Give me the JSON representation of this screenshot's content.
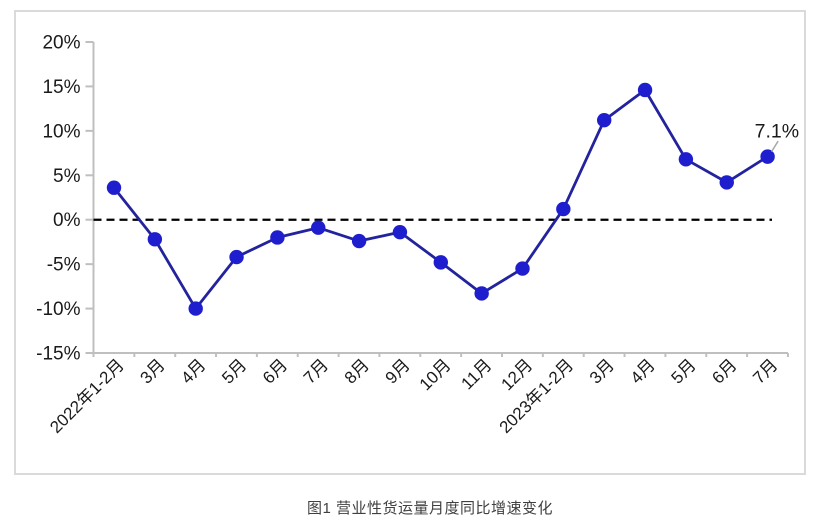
{
  "chart_data": {
    "type": "line",
    "title": "",
    "caption": "图1 营业性货运量月度同比增速变化",
    "categories": [
      "2022年1-2月",
      "3月",
      "4月",
      "5月",
      "6月",
      "7月",
      "8月",
      "9月",
      "10月",
      "11月",
      "12月",
      "2023年1-2月",
      "3月",
      "4月",
      "5月",
      "6月",
      "7月"
    ],
    "values": [
      3.6,
      -2.2,
      -10.0,
      -4.2,
      -2.0,
      -0.9,
      -2.4,
      -1.4,
      -4.8,
      -8.3,
      -5.5,
      1.2,
      11.2,
      14.6,
      6.8,
      4.2,
      7.1
    ],
    "xlabel": "",
    "ylabel": "",
    "ylim": [
      -15,
      20
    ],
    "ytick_step": 5,
    "ytick_labels": [
      "20%",
      "15%",
      "10%",
      "5%",
      "0%",
      "-5%",
      "-10%",
      "-15%"
    ],
    "zero_line": "dashed-black",
    "grid": "off",
    "legend": "none",
    "last_point_label": "7.1%",
    "colors": {
      "line": "#23239e",
      "marker": "#1e1ecf",
      "axis": "#bfbfbf",
      "zero_line": "#000000",
      "tick_label": "#1a1a1a",
      "data_label": "#1a1a1a",
      "leader_line": "#a6a6a6",
      "frame_border": "#dadada",
      "caption": "#404040"
    }
  }
}
